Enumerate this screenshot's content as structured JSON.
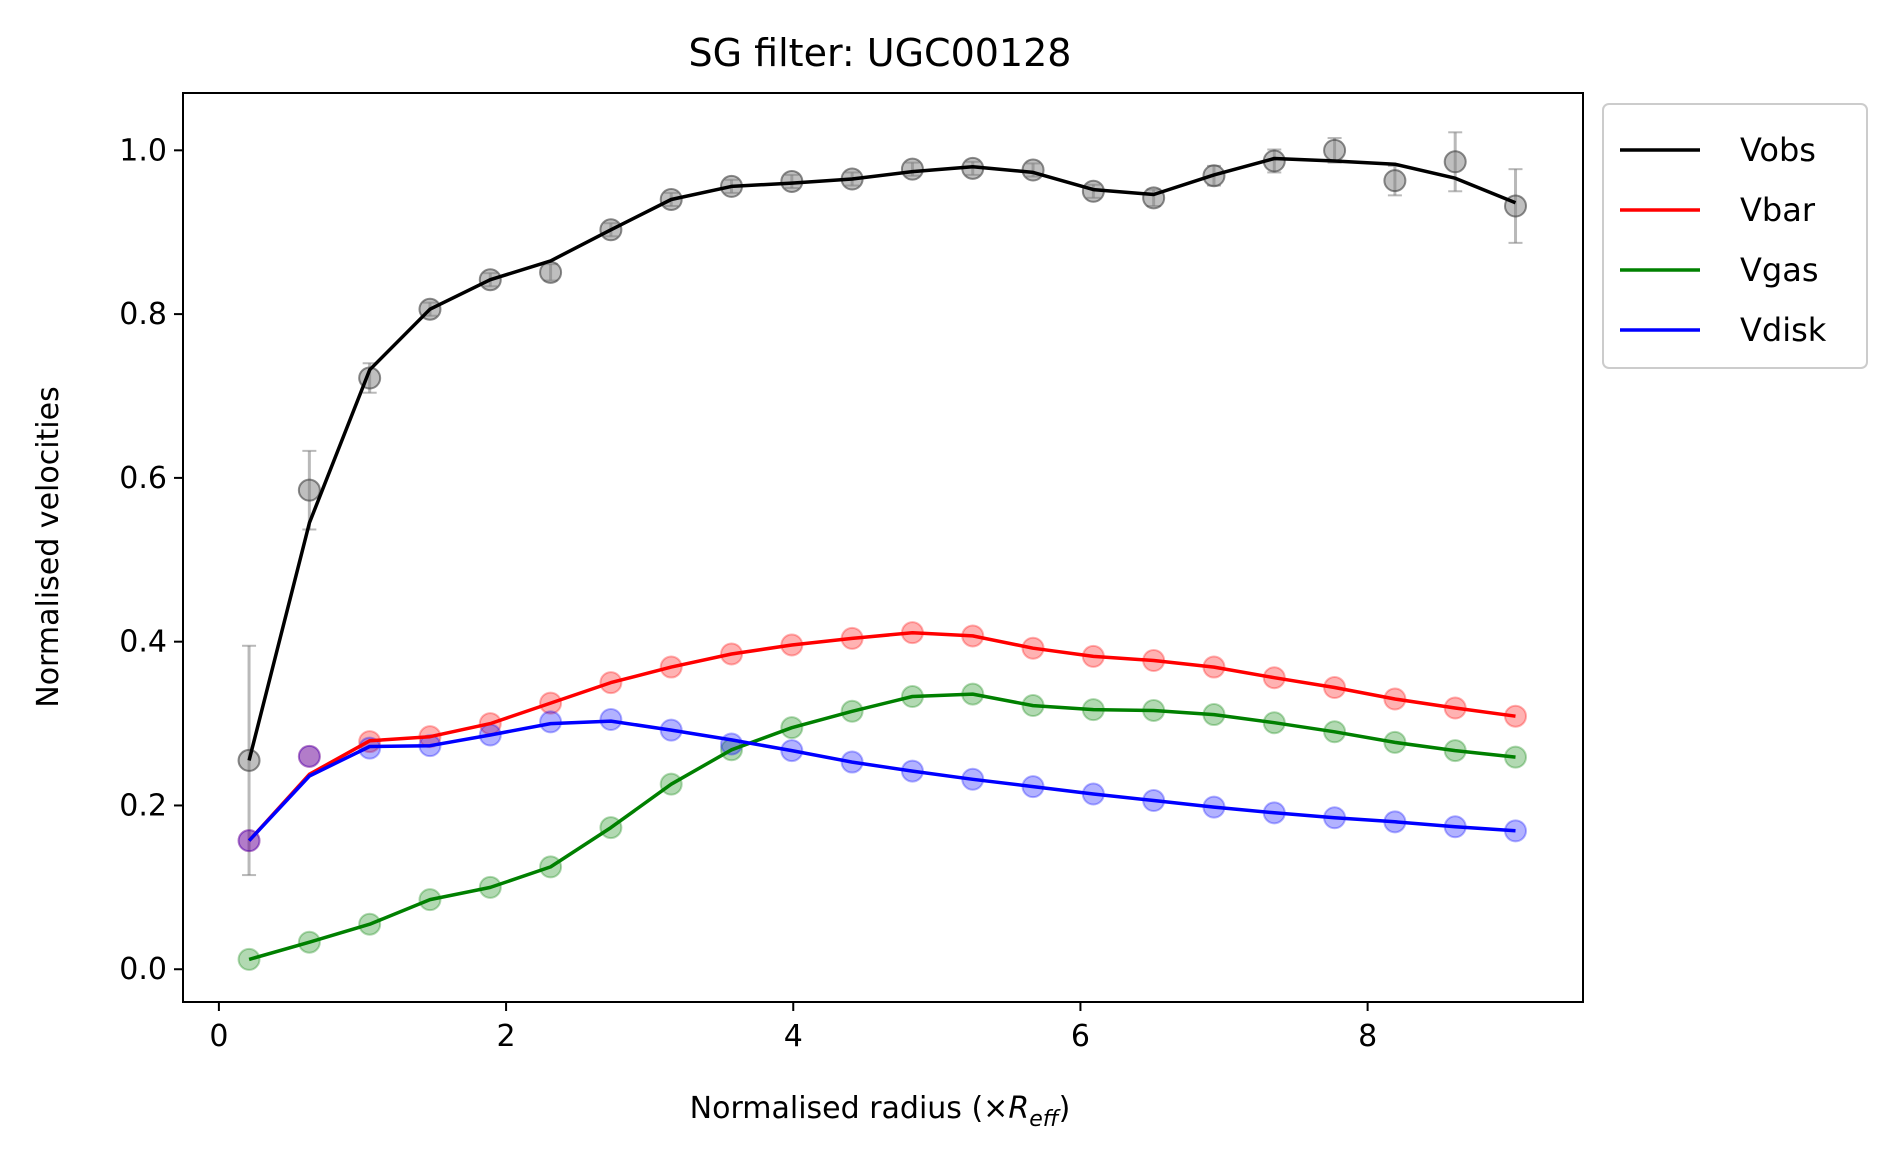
{
  "chart_data": {
    "type": "line",
    "title": "SG filter: UGC00128",
    "xlabel_prefix": "Normalised radius (×",
    "xlabel_symbol": "R",
    "xlabel_subscript": "eff",
    "xlabel_suffix": ")",
    "ylabel": "Normalised velocities",
    "xlim": [
      -0.25,
      9.5
    ],
    "ylim": [
      -0.04,
      1.07
    ],
    "xticks": [
      0,
      2,
      4,
      6,
      8
    ],
    "xtick_labels": [
      "0",
      "2",
      "4",
      "6",
      "8"
    ],
    "yticks": [
      0.0,
      0.2,
      0.4,
      0.6,
      0.8,
      1.0
    ],
    "ytick_labels": [
      "0.0",
      "0.2",
      "0.4",
      "0.6",
      "0.8",
      "1.0"
    ],
    "legend_position": "outside-right-top",
    "x": [
      0.21,
      0.63,
      1.05,
      1.47,
      1.89,
      2.31,
      2.73,
      3.15,
      3.57,
      3.99,
      4.41,
      4.83,
      5.25,
      5.67,
      6.09,
      6.51,
      6.93,
      7.35,
      7.77,
      8.19,
      8.61,
      9.03
    ],
    "observed": {
      "color": "#808080",
      "values": [
        0.255,
        0.585,
        0.722,
        0.806,
        0.842,
        0.851,
        0.903,
        0.94,
        0.956,
        0.962,
        0.965,
        0.977,
        0.978,
        0.976,
        0.95,
        0.942,
        0.969,
        0.987,
        1.0,
        0.963,
        0.986,
        0.932
      ],
      "errors": [
        0.14,
        0.048,
        0.018,
        0.008,
        0.008,
        0.01,
        0.008,
        0.008,
        0.008,
        0.008,
        0.008,
        0.008,
        0.008,
        0.008,
        0.008,
        0.01,
        0.012,
        0.014,
        0.015,
        0.018,
        0.036,
        0.045
      ]
    },
    "series": [
      {
        "name": "Vobs",
        "color": "#000000",
        "values": [
          0.255,
          0.545,
          0.732,
          0.806,
          0.842,
          0.865,
          0.903,
          0.94,
          0.956,
          0.96,
          0.965,
          0.974,
          0.98,
          0.973,
          0.952,
          0.946,
          0.97,
          0.99,
          0.987,
          0.983,
          0.966,
          0.936
        ],
        "markers": null
      },
      {
        "name": "Vbar",
        "color": "#ff0000",
        "values": [
          0.157,
          0.238,
          0.279,
          0.284,
          0.3,
          0.325,
          0.35,
          0.369,
          0.385,
          0.396,
          0.404,
          0.411,
          0.407,
          0.392,
          0.382,
          0.377,
          0.369,
          0.356,
          0.344,
          0.33,
          0.319,
          0.309
        ],
        "markers": [
          0.157,
          0.26,
          0.278,
          0.284,
          0.3,
          0.325,
          0.35,
          0.369,
          0.385,
          0.396,
          0.404,
          0.411,
          0.407,
          0.392,
          0.382,
          0.377,
          0.369,
          0.356,
          0.344,
          0.33,
          0.319,
          0.309
        ]
      },
      {
        "name": "Vgas",
        "color": "#008000",
        "values": [
          0.012,
          0.033,
          0.055,
          0.085,
          0.1,
          0.125,
          0.173,
          0.226,
          0.268,
          0.295,
          0.315,
          0.333,
          0.336,
          0.322,
          0.317,
          0.316,
          0.311,
          0.301,
          0.29,
          0.277,
          0.267,
          0.259
        ],
        "markers": [
          0.012,
          0.033,
          0.055,
          0.085,
          0.1,
          0.125,
          0.173,
          0.226,
          0.268,
          0.295,
          0.315,
          0.333,
          0.336,
          0.322,
          0.317,
          0.316,
          0.311,
          0.301,
          0.29,
          0.277,
          0.267,
          0.259
        ]
      },
      {
        "name": "Vdisk",
        "color": "#0000ff",
        "values": [
          0.157,
          0.236,
          0.272,
          0.273,
          0.286,
          0.3,
          0.303,
          0.292,
          0.28,
          0.267,
          0.253,
          0.242,
          0.232,
          0.223,
          0.214,
          0.206,
          0.198,
          0.191,
          0.185,
          0.18,
          0.174,
          0.169
        ],
        "markers": [
          0.157,
          0.26,
          0.27,
          0.273,
          0.286,
          0.302,
          0.305,
          0.292,
          0.275,
          0.267,
          0.253,
          0.242,
          0.232,
          0.223,
          0.214,
          0.206,
          0.198,
          0.191,
          0.185,
          0.18,
          0.174,
          0.169
        ]
      }
    ]
  }
}
